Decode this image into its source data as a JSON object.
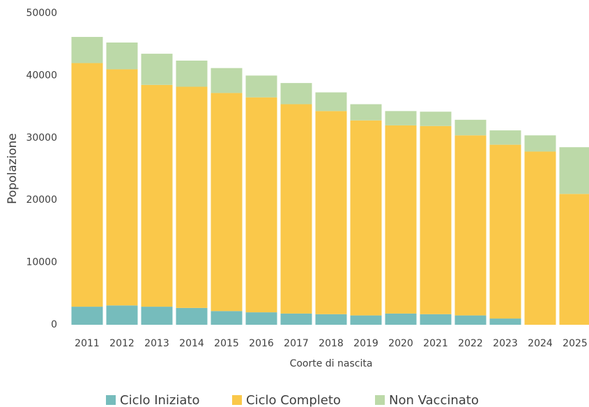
{
  "chart_data": {
    "type": "stacked_bar",
    "x_label": "Coorte di nascita",
    "y_label": "Popolazione",
    "categories": [
      "2011",
      "2012",
      "2013",
      "2014",
      "2015",
      "2016",
      "2017",
      "2018",
      "2019",
      "2020",
      "2021",
      "2022",
      "2023",
      "2024",
      "2025"
    ],
    "series": [
      {
        "name": "Ciclo Iniziato",
        "color": "#76bcbc",
        "values": [
          2900,
          3100,
          2900,
          2700,
          2200,
          2000,
          1800,
          1700,
          1500,
          1800,
          1700,
          1500,
          1000,
          0,
          0
        ]
      },
      {
        "name": "Ciclo Completo",
        "color": "#fac84a",
        "values": [
          39100,
          37900,
          35600,
          35500,
          35000,
          34500,
          33600,
          32600,
          31300,
          30200,
          30200,
          28900,
          27900,
          27800,
          21000
        ]
      },
      {
        "name": "Non Vaccinato",
        "color": "#bcd9a8",
        "values": [
          4200,
          4300,
          5000,
          4200,
          4000,
          3500,
          3400,
          3000,
          2600,
          2300,
          2300,
          2500,
          2300,
          2600,
          7500
        ]
      }
    ],
    "ylim": [
      0,
      50000
    ],
    "yticks": [
      0,
      10000,
      20000,
      30000,
      40000,
      50000
    ],
    "grid": false
  }
}
